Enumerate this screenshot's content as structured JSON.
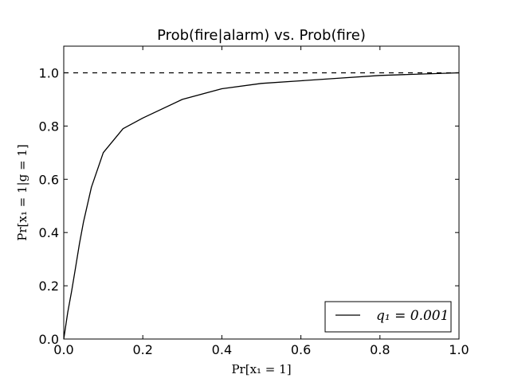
{
  "chart_data": {
    "type": "line",
    "title": "Prob(fire|alarm) vs. Prob(fire)",
    "xlabel": "Pr[x₁ = 1]",
    "ylabel": "Pr[x₁ = 1|g = 1]",
    "xlim": [
      0.0,
      1.0
    ],
    "ylim": [
      0.0,
      1.1
    ],
    "x_ticks": [
      "0.0",
      "0.2",
      "0.4",
      "0.6",
      "0.8",
      "1.0"
    ],
    "y_ticks": [
      "0.0",
      "0.2",
      "0.4",
      "0.6",
      "0.8",
      "1.0"
    ],
    "grid": false,
    "legend_position": "lower-right",
    "series": [
      {
        "name": "q₁ = 0.001",
        "style": "solid",
        "color": "#000000",
        "x": [
          0.0,
          0.01,
          0.02,
          0.03,
          0.04,
          0.05,
          0.07,
          0.1,
          0.15,
          0.2,
          0.3,
          0.4,
          0.5,
          0.6,
          0.7,
          0.8,
          0.9,
          1.0
        ],
        "y": [
          0.0,
          0.1,
          0.18,
          0.27,
          0.36,
          0.44,
          0.57,
          0.7,
          0.79,
          0.83,
          0.9,
          0.94,
          0.96,
          0.97,
          0.98,
          0.99,
          0.995,
          1.0
        ]
      },
      {
        "name": "",
        "style": "dashed",
        "color": "#000000",
        "x": [
          0.0,
          1.0
        ],
        "y": [
          1.0,
          1.0
        ]
      }
    ]
  }
}
